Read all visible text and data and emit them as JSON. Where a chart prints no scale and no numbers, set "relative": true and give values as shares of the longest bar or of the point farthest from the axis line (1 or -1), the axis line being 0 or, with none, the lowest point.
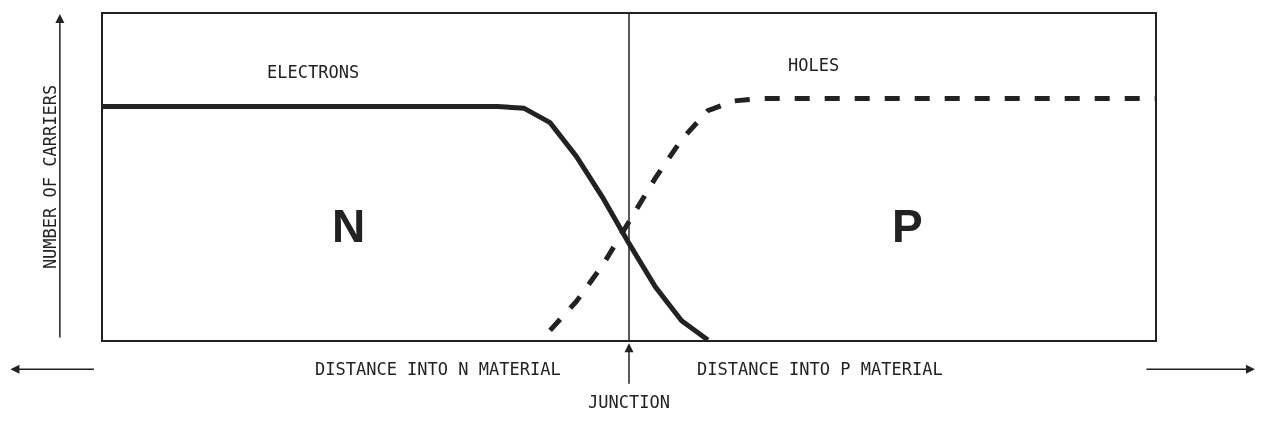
{
  "chart_data": {
    "type": "line",
    "relative": true,
    "ylabel": "NUMBER OF CARRIERS",
    "legend": false,
    "marker": "none",
    "categories": [
      null,
      null,
      null,
      null,
      null,
      null,
      null,
      null,
      null,
      null,
      null,
      null,
      null,
      null,
      null,
      null,
      null,
      null,
      null,
      null,
      null,
      null,
      null,
      null,
      null,
      null,
      null,
      null,
      null,
      null,
      null,
      null,
      null,
      null,
      null,
      null,
      null,
      null,
      null,
      null,
      null
    ],
    "series": [
      {
        "name": "ELECTRONS",
        "color": "#222222",
        "line_style": "solid",
        "values": [
          0.967,
          0.967,
          0.967,
          0.967,
          0.967,
          0.967,
          0.967,
          0.967,
          0.967,
          0.967,
          0.967,
          0.967,
          0.967,
          0.967,
          0.967,
          0.967,
          0.96,
          0.9,
          0.76,
          0.59,
          0.4,
          0.22,
          0.08,
          0,
          null,
          null,
          null,
          null,
          null,
          null,
          null,
          null,
          null,
          null,
          null,
          null,
          null,
          null,
          null,
          null,
          null
        ]
      },
      {
        "name": "HOLES",
        "color": "#222222",
        "line_style": "dashed",
        "values": [
          null,
          null,
          null,
          null,
          null,
          null,
          null,
          null,
          null,
          null,
          null,
          null,
          null,
          null,
          null,
          null,
          null,
          0.04,
          0.16,
          0.31,
          0.49,
          0.67,
          0.83,
          0.95,
          0.99,
          1,
          1,
          1,
          1,
          1,
          1,
          1,
          1,
          1,
          1,
          1,
          1,
          1,
          1,
          1,
          1
        ]
      }
    ],
    "annotations": [
      "N",
      "P",
      "DISTANCE INTO N MATERIAL",
      "DISTANCE INTO P MATERIAL",
      "JUNCTION"
    ]
  }
}
